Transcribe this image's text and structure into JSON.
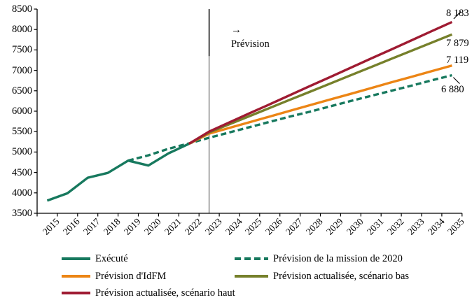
{
  "chart_data": {
    "type": "line",
    "title": "",
    "x_axis": {
      "label": "",
      "categories": [
        2015,
        2016,
        2017,
        2018,
        2019,
        2020,
        2021,
        2022,
        2023,
        2024,
        2025,
        2026,
        2027,
        2028,
        2029,
        2030,
        2031,
        2032,
        2033,
        2034,
        2035
      ]
    },
    "y_axis": {
      "label": "",
      "min": 3500,
      "max": 8500,
      "step": 500,
      "ticks": [
        3500,
        4000,
        4500,
        5000,
        5500,
        6000,
        6500,
        7000,
        7500,
        8000,
        8500
      ],
      "grid": false
    },
    "series": [
      {
        "id": "execute",
        "name": "Exécuté",
        "color": "#17795E",
        "style": "solid",
        "points": [
          [
            2015,
            3810
          ],
          [
            2016,
            3990
          ],
          [
            2017,
            4370
          ],
          [
            2018,
            4490
          ],
          [
            2019,
            4790
          ],
          [
            2020,
            4670
          ],
          [
            2021,
            4970
          ],
          [
            2022,
            5200
          ]
        ]
      },
      {
        "id": "mission2020",
        "name": "Prévision de la mission de 2020",
        "color": "#17795E",
        "style": "dashed",
        "points": [
          [
            2019,
            4790
          ],
          [
            2020,
            4920
          ],
          [
            2021,
            5080
          ],
          [
            2022,
            5210
          ],
          [
            2023,
            5350
          ],
          [
            2024,
            5480
          ],
          [
            2025,
            5610
          ],
          [
            2026,
            5740
          ],
          [
            2027,
            5870
          ],
          [
            2028,
            5990
          ],
          [
            2029,
            6120
          ],
          [
            2030,
            6250
          ],
          [
            2031,
            6375
          ],
          [
            2032,
            6500
          ],
          [
            2033,
            6625
          ],
          [
            2034,
            6755
          ],
          [
            2035,
            6880
          ]
        ]
      },
      {
        "id": "idfm",
        "name": "Prévision d'IdFM",
        "color": "#EC8515",
        "style": "solid",
        "points": [
          [
            2022,
            5200
          ],
          [
            2023,
            5450
          ],
          [
            2024,
            5590
          ],
          [
            2025,
            5730
          ],
          [
            2026,
            5870
          ],
          [
            2027,
            6010
          ],
          [
            2028,
            6150
          ],
          [
            2029,
            6290
          ],
          [
            2030,
            6425
          ],
          [
            2031,
            6565
          ],
          [
            2032,
            6705
          ],
          [
            2033,
            6840
          ],
          [
            2034,
            6980
          ],
          [
            2035,
            7119
          ]
        ]
      },
      {
        "id": "bas",
        "name": "Prévision actualisée, scénario bas",
        "color": "#76802B",
        "style": "solid",
        "points": [
          [
            2022,
            5200
          ],
          [
            2023,
            5480
          ],
          [
            2024,
            5680
          ],
          [
            2025,
            5880
          ],
          [
            2026,
            6080
          ],
          [
            2027,
            6280
          ],
          [
            2028,
            6480
          ],
          [
            2029,
            6680
          ],
          [
            2030,
            6880
          ],
          [
            2031,
            7080
          ],
          [
            2032,
            7280
          ],
          [
            2033,
            7480
          ],
          [
            2034,
            7680
          ],
          [
            2035,
            7879
          ]
        ]
      },
      {
        "id": "haut",
        "name": "Prévision actualisée, scénario haut",
        "color": "#9F1B32",
        "style": "solid",
        "points": [
          [
            2022,
            5200
          ],
          [
            2023,
            5500
          ],
          [
            2024,
            5725
          ],
          [
            2025,
            5950
          ],
          [
            2026,
            6170
          ],
          [
            2027,
            6395
          ],
          [
            2028,
            6620
          ],
          [
            2029,
            6840
          ],
          [
            2030,
            7065
          ],
          [
            2031,
            7290
          ],
          [
            2032,
            7510
          ],
          [
            2033,
            7735
          ],
          [
            2034,
            7960
          ],
          [
            2035,
            8183
          ]
        ]
      }
    ],
    "end_labels": [
      {
        "series_id": "haut",
        "text": "8 183",
        "value": 8183
      },
      {
        "series_id": "bas",
        "text": "7 879",
        "value": 7879
      },
      {
        "series_id": "idfm",
        "text": "7 119",
        "value": 7119
      },
      {
        "series_id": "mission2020",
        "text": "6 880",
        "value": 6880
      }
    ],
    "divider": {
      "year": 2023,
      "color": "#7F7F7F",
      "marker_top_value": 8500,
      "marker_bottom_value": 7350
    },
    "annotation": {
      "arrow": "→",
      "label": "Prévision"
    },
    "legend": {
      "position": "bottom",
      "items": [
        {
          "series_id": "execute",
          "label": "Exécuté"
        },
        {
          "series_id": "mission2020",
          "label": "Prévision de la mission de 2020"
        },
        {
          "series_id": "idfm",
          "label": "Prévision d'IdFM"
        },
        {
          "series_id": "bas",
          "label": "Prévision actualisée, scénario bas"
        },
        {
          "series_id": "haut",
          "label": "Prévision actualisée, scénario haut"
        }
      ]
    }
  }
}
